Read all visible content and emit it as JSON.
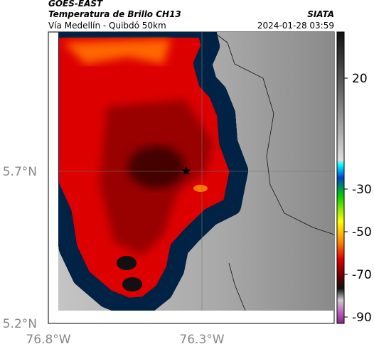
{
  "header": {
    "source": "GOES-EAST",
    "title": "Temperatura de Brillo CH13",
    "agency": "SIATA",
    "route": "Vía Medellín - Quibdó 50km",
    "timestamp": "2024-01-28 03:59"
  },
  "axes": {
    "latitude_labels": [
      "5.7°N",
      "5.2°N"
    ],
    "longitude_labels": [
      "76.8°W",
      "76.3°W"
    ]
  },
  "colorbar": {
    "ticks": [
      20,
      -30,
      -50,
      -70,
      -90
    ]
  }
}
